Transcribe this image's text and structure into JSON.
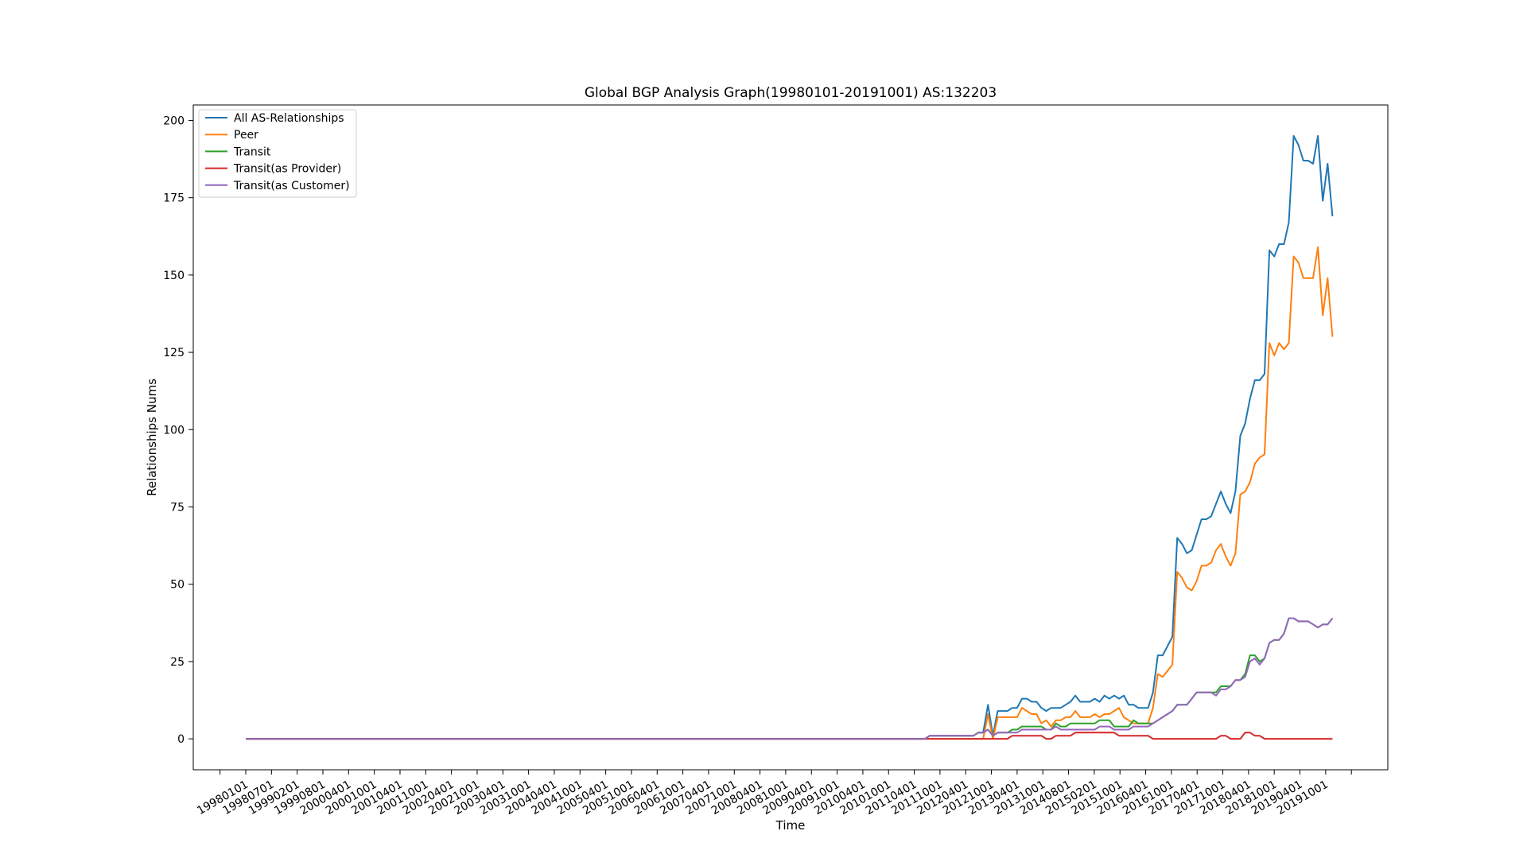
{
  "chart_data": {
    "type": "line",
    "title": "Global BGP Analysis Graph(19980101-20191001) AS:132203",
    "xlabel": "Time",
    "ylabel": "Relationships Nums",
    "ylim": [
      -10,
      205
    ],
    "yticks": [
      0,
      25,
      50,
      75,
      100,
      125,
      150,
      175,
      200
    ],
    "grid": false,
    "legend_position": "top-left",
    "x_tick_labels": [
      "19980101",
      "19980701",
      "19990201",
      "19990801",
      "20000401",
      "20001001",
      "20010401",
      "20011001",
      "20020401",
      "20021001",
      "20030401",
      "20031001",
      "20040401",
      "20041001",
      "20050401",
      "20051001",
      "20060401",
      "20061001",
      "20070401",
      "20071001",
      "20080401",
      "20081001",
      "20090401",
      "20091001",
      "20100401",
      "20101001",
      "20110401",
      "20111001",
      "20120401",
      "20121001",
      "20130401",
      "20131001",
      "20140801",
      "20150201",
      "20151001",
      "20160401",
      "20161001",
      "20170401",
      "20171001",
      "20180401",
      "20181001",
      "20190401",
      "20191001"
    ],
    "series": [
      {
        "name": "All AS-Relationships",
        "color": "#1f77b4",
        "points": [
          [
            0,
            0
          ],
          [
            140,
            0
          ],
          [
            141,
            1
          ],
          [
            150,
            1
          ],
          [
            151,
            2
          ],
          [
            152,
            2
          ],
          [
            153,
            11
          ],
          [
            154,
            1
          ],
          [
            155,
            9
          ],
          [
            157,
            9
          ],
          [
            158,
            10
          ],
          [
            159,
            10
          ],
          [
            160,
            13
          ],
          [
            161,
            13
          ],
          [
            162,
            12
          ],
          [
            163,
            12
          ],
          [
            164,
            10
          ],
          [
            165,
            9
          ],
          [
            166,
            10
          ],
          [
            168,
            10
          ],
          [
            169,
            11
          ],
          [
            170,
            12
          ],
          [
            171,
            14
          ],
          [
            172,
            12
          ],
          [
            174,
            12
          ],
          [
            175,
            13
          ],
          [
            176,
            12
          ],
          [
            177,
            14
          ],
          [
            178,
            13
          ],
          [
            179,
            14
          ],
          [
            180,
            13
          ],
          [
            181,
            14
          ],
          [
            182,
            11
          ],
          [
            183,
            11
          ],
          [
            184,
            10
          ],
          [
            186,
            10
          ],
          [
            187,
            15
          ],
          [
            188,
            27
          ],
          [
            189,
            27
          ],
          [
            190,
            30
          ],
          [
            191,
            33
          ],
          [
            192,
            65
          ],
          [
            193,
            63
          ],
          [
            194,
            60
          ],
          [
            195,
            61
          ],
          [
            196,
            66
          ],
          [
            197,
            71
          ],
          [
            198,
            71
          ],
          [
            199,
            72
          ],
          [
            200,
            76
          ],
          [
            201,
            80
          ],
          [
            202,
            76
          ],
          [
            203,
            73
          ],
          [
            204,
            80
          ],
          [
            205,
            98
          ],
          [
            206,
            102
          ],
          [
            207,
            110
          ],
          [
            208,
            116
          ],
          [
            209,
            116
          ],
          [
            210,
            118
          ],
          [
            211,
            158
          ],
          [
            212,
            156
          ],
          [
            213,
            160
          ],
          [
            214,
            160
          ],
          [
            215,
            167
          ],
          [
            216,
            195
          ],
          [
            217,
            192
          ],
          [
            218,
            187
          ],
          [
            219,
            187
          ],
          [
            220,
            186
          ],
          [
            221,
            195
          ],
          [
            222,
            174
          ],
          [
            223,
            186
          ],
          [
            224,
            169
          ]
        ]
      },
      {
        "name": "Peer",
        "color": "#ff7f0e",
        "points": [
          [
            0,
            0
          ],
          [
            152,
            0
          ],
          [
            153,
            8
          ],
          [
            154,
            0
          ],
          [
            155,
            7
          ],
          [
            159,
            7
          ],
          [
            160,
            10
          ],
          [
            161,
            9
          ],
          [
            162,
            8
          ],
          [
            163,
            8
          ],
          [
            164,
            5
          ],
          [
            165,
            6
          ],
          [
            166,
            4
          ],
          [
            167,
            6
          ],
          [
            168,
            6
          ],
          [
            169,
            7
          ],
          [
            170,
            7
          ],
          [
            171,
            9
          ],
          [
            172,
            7
          ],
          [
            174,
            7
          ],
          [
            175,
            8
          ],
          [
            176,
            7
          ],
          [
            177,
            8
          ],
          [
            178,
            8
          ],
          [
            179,
            9
          ],
          [
            180,
            10
          ],
          [
            181,
            7
          ],
          [
            182,
            6
          ],
          [
            183,
            5
          ],
          [
            184,
            5
          ],
          [
            185,
            5
          ],
          [
            186,
            5
          ],
          [
            187,
            10
          ],
          [
            188,
            21
          ],
          [
            189,
            20
          ],
          [
            190,
            22
          ],
          [
            191,
            24
          ],
          [
            192,
            54
          ],
          [
            193,
            52
          ],
          [
            194,
            49
          ],
          [
            195,
            48
          ],
          [
            196,
            51
          ],
          [
            197,
            56
          ],
          [
            198,
            56
          ],
          [
            199,
            57
          ],
          [
            200,
            61
          ],
          [
            201,
            63
          ],
          [
            202,
            59
          ],
          [
            203,
            56
          ],
          [
            204,
            60
          ],
          [
            205,
            79
          ],
          [
            206,
            80
          ],
          [
            207,
            83
          ],
          [
            208,
            89
          ],
          [
            209,
            91
          ],
          [
            210,
            92
          ],
          [
            211,
            128
          ],
          [
            212,
            124
          ],
          [
            213,
            128
          ],
          [
            214,
            126
          ],
          [
            215,
            128
          ],
          [
            216,
            156
          ],
          [
            217,
            154
          ],
          [
            218,
            149
          ],
          [
            219,
            149
          ],
          [
            220,
            149
          ],
          [
            221,
            159
          ],
          [
            222,
            137
          ],
          [
            223,
            149
          ],
          [
            224,
            130
          ]
        ]
      },
      {
        "name": "Transit",
        "color": "#2ca02c",
        "points": [
          [
            0,
            0
          ],
          [
            140,
            0
          ],
          [
            141,
            1
          ],
          [
            150,
            1
          ],
          [
            151,
            2
          ],
          [
            152,
            2
          ],
          [
            153,
            3
          ],
          [
            154,
            1
          ],
          [
            155,
            2
          ],
          [
            157,
            2
          ],
          [
            158,
            3
          ],
          [
            159,
            3
          ],
          [
            160,
            4
          ],
          [
            164,
            4
          ],
          [
            165,
            3
          ],
          [
            166,
            3
          ],
          [
            167,
            5
          ],
          [
            168,
            4
          ],
          [
            169,
            4
          ],
          [
            170,
            5
          ],
          [
            175,
            5
          ],
          [
            176,
            6
          ],
          [
            177,
            6
          ],
          [
            178,
            6
          ],
          [
            179,
            4
          ],
          [
            180,
            4
          ],
          [
            181,
            4
          ],
          [
            182,
            4
          ],
          [
            183,
            6
          ],
          [
            184,
            5
          ],
          [
            185,
            5
          ],
          [
            186,
            5
          ],
          [
            187,
            5
          ],
          [
            188,
            6
          ],
          [
            189,
            7
          ],
          [
            190,
            8
          ],
          [
            191,
            9
          ],
          [
            192,
            11
          ],
          [
            194,
            11
          ],
          [
            195,
            13
          ],
          [
            196,
            15
          ],
          [
            199,
            15
          ],
          [
            200,
            15
          ],
          [
            201,
            17
          ],
          [
            202,
            17
          ],
          [
            203,
            17
          ],
          [
            204,
            19
          ],
          [
            205,
            19
          ],
          [
            206,
            21
          ],
          [
            207,
            27
          ],
          [
            208,
            27
          ],
          [
            209,
            25
          ],
          [
            210,
            26
          ],
          [
            211,
            31
          ],
          [
            212,
            32
          ],
          [
            213,
            32
          ],
          [
            214,
            34
          ],
          [
            215,
            39
          ],
          [
            216,
            39
          ],
          [
            217,
            38
          ],
          [
            219,
            38
          ],
          [
            220,
            37
          ],
          [
            221,
            36
          ],
          [
            222,
            37
          ],
          [
            223,
            37
          ],
          [
            224,
            39
          ]
        ]
      },
      {
        "name": "Transit(as Provider)",
        "color": "#d62728",
        "points": [
          [
            0,
            0
          ],
          [
            157,
            0
          ],
          [
            158,
            1
          ],
          [
            164,
            1
          ],
          [
            165,
            0
          ],
          [
            166,
            0
          ],
          [
            167,
            1
          ],
          [
            170,
            1
          ],
          [
            171,
            2
          ],
          [
            179,
            2
          ],
          [
            180,
            1
          ],
          [
            186,
            1
          ],
          [
            187,
            0
          ],
          [
            200,
            0
          ],
          [
            201,
            1
          ],
          [
            202,
            1
          ],
          [
            203,
            0
          ],
          [
            205,
            0
          ],
          [
            206,
            2
          ],
          [
            207,
            2
          ],
          [
            208,
            1
          ],
          [
            209,
            1
          ],
          [
            210,
            0
          ],
          [
            224,
            0
          ]
        ]
      },
      {
        "name": "Transit(as Customer)",
        "color": "#9467bd",
        "points": [
          [
            0,
            0
          ],
          [
            140,
            0
          ],
          [
            141,
            1
          ],
          [
            150,
            1
          ],
          [
            151,
            2
          ],
          [
            152,
            2
          ],
          [
            153,
            3
          ],
          [
            154,
            1
          ],
          [
            155,
            2
          ],
          [
            157,
            2
          ],
          [
            158,
            2
          ],
          [
            159,
            2
          ],
          [
            160,
            3
          ],
          [
            164,
            3
          ],
          [
            165,
            3
          ],
          [
            166,
            3
          ],
          [
            167,
            4
          ],
          [
            168,
            3
          ],
          [
            169,
            3
          ],
          [
            170,
            3
          ],
          [
            175,
            3
          ],
          [
            176,
            4
          ],
          [
            177,
            4
          ],
          [
            178,
            4
          ],
          [
            179,
            3
          ],
          [
            180,
            3
          ],
          [
            181,
            3
          ],
          [
            182,
            3
          ],
          [
            183,
            4
          ],
          [
            184,
            4
          ],
          [
            185,
            4
          ],
          [
            186,
            4
          ],
          [
            187,
            5
          ],
          [
            188,
            6
          ],
          [
            189,
            7
          ],
          [
            190,
            8
          ],
          [
            191,
            9
          ],
          [
            192,
            11
          ],
          [
            194,
            11
          ],
          [
            195,
            13
          ],
          [
            196,
            15
          ],
          [
            199,
            15
          ],
          [
            200,
            14
          ],
          [
            201,
            16
          ],
          [
            202,
            16
          ],
          [
            203,
            17
          ],
          [
            204,
            19
          ],
          [
            205,
            19
          ],
          [
            206,
            20
          ],
          [
            207,
            25
          ],
          [
            208,
            26
          ],
          [
            209,
            24
          ],
          [
            210,
            26
          ],
          [
            211,
            31
          ],
          [
            212,
            32
          ],
          [
            213,
            32
          ],
          [
            214,
            34
          ],
          [
            215,
            39
          ],
          [
            216,
            39
          ],
          [
            217,
            38
          ],
          [
            219,
            38
          ],
          [
            220,
            37
          ],
          [
            221,
            36
          ],
          [
            222,
            37
          ],
          [
            223,
            37
          ],
          [
            224,
            39
          ]
        ]
      }
    ]
  }
}
